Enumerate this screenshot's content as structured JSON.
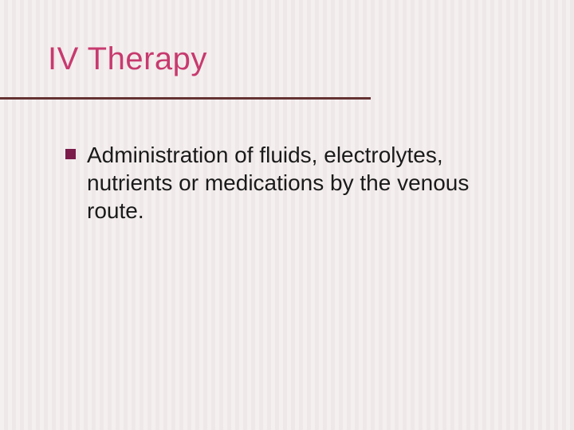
{
  "slide": {
    "title": "IV Therapy",
    "title_color": "#c73a6e",
    "title_fontsize": 40,
    "underline_color": "#653232",
    "underline_width": 465,
    "underline_thickness": 3,
    "background_color": "#f5f0f0",
    "stripe_color": "#efe8e8",
    "bullets": [
      {
        "text": "Administration of fluids, electrolytes, nutrients or medications by the venous route.",
        "marker_color": "#7a1b4a",
        "text_color": "#1a1a1a",
        "fontsize": 28
      }
    ]
  }
}
